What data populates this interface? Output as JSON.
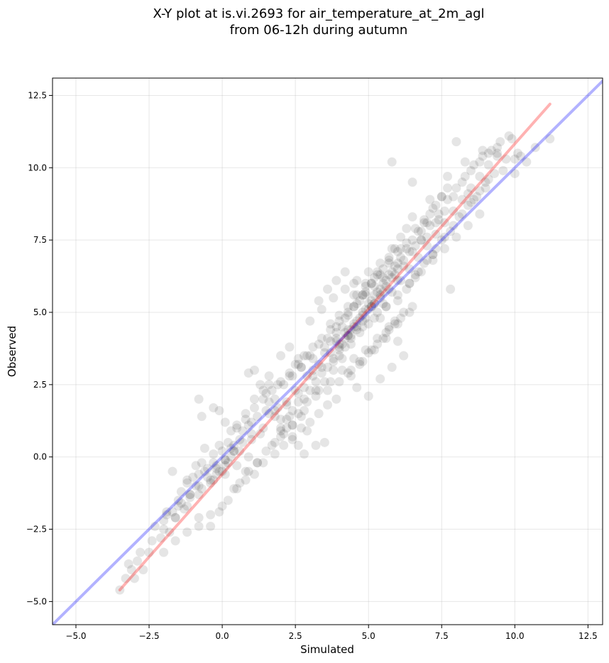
{
  "chart_data": {
    "type": "scatter",
    "title_lines": [
      "X-Y plot at is.vi.2693 for air_temperature_at_2m_agl",
      "from 06-12h during autumn"
    ],
    "xlabel": "Simulated",
    "ylabel": "Observed",
    "xlim": [
      -5.8,
      13.0
    ],
    "ylim": [
      -5.8,
      13.1
    ],
    "x_ticks": [
      -5.0,
      -2.5,
      0.0,
      2.5,
      5.0,
      7.5,
      10.0,
      12.5
    ],
    "x_tick_labels": [
      "−5.0",
      "−2.5",
      "0.0",
      "2.5",
      "5.0",
      "7.5",
      "10.0",
      "12.5"
    ],
    "y_ticks": [
      -5.0,
      -2.5,
      0.0,
      2.5,
      5.0,
      7.5,
      10.0,
      12.5
    ],
    "y_tick_labels": [
      "−5.0",
      "−2.5",
      "0.0",
      "2.5",
      "5.0",
      "7.5",
      "10.0",
      "12.5"
    ],
    "grid": true,
    "series": [
      {
        "kind": "points",
        "color": "#000000",
        "alpha": 0.1,
        "x": [
          -3.5,
          -3.3,
          -3.1,
          -3.0,
          -2.9,
          -2.7,
          -2.5,
          -2.1,
          -2.0,
          -1.9,
          -1.8,
          -1.7,
          -1.6,
          -1.5,
          -1.4,
          -1.3,
          -1.2,
          -1.1,
          -1.0,
          -0.9,
          -0.8,
          -0.7,
          -0.6,
          -0.5,
          -0.4,
          -0.3,
          -0.2,
          -0.1,
          0.0,
          0.1,
          0.2,
          0.3,
          0.4,
          -1.7,
          -1.2,
          -0.9,
          -0.6,
          -0.3,
          -0.1,
          -0.4,
          -0.8,
          -0.1,
          0.2,
          0.5,
          0.8,
          1.1,
          1.4,
          1.7,
          2.0,
          2.3,
          2.6,
          2.9,
          3.2,
          3.5,
          0.3,
          0.7,
          1.0,
          1.3,
          1.6,
          1.9,
          2.2,
          2.5,
          2.8,
          3.1,
          3.4,
          3.7,
          4.0,
          4.3,
          4.6,
          4.9,
          5.2,
          5.5,
          0.1,
          0.4,
          0.6,
          0.9,
          1.2,
          1.5,
          1.8,
          2.1,
          2.4,
          2.7,
          3.0,
          3.3,
          3.6,
          3.9,
          4.2,
          4.5,
          4.8,
          5.1,
          5.4,
          5.7,
          6.0,
          6.3,
          6.6,
          6.9,
          7.2,
          7.5,
          2.0,
          2.2,
          2.4,
          2.6,
          2.8,
          3.0,
          3.2,
          3.4,
          3.6,
          3.8,
          4.0,
          4.2,
          4.4,
          4.6,
          4.8,
          5.0,
          5.2,
          5.4,
          5.6,
          5.8,
          6.0,
          6.2,
          6.4,
          6.6,
          6.8,
          7.0,
          3.1,
          3.3,
          3.5,
          3.7,
          3.9,
          4.1,
          4.3,
          4.5,
          4.7,
          4.9,
          5.1,
          5.3,
          5.5,
          5.7,
          5.9,
          6.1,
          6.3,
          6.5,
          3.8,
          4.0,
          4.2,
          4.4,
          4.6,
          4.8,
          5.0,
          5.2,
          5.4,
          5.6,
          5.8,
          6.0,
          4.1,
          4.3,
          4.5,
          4.7,
          4.9,
          5.1,
          5.3,
          5.5,
          5.7,
          5.9,
          6.1,
          6.3,
          6.5,
          6.7,
          6.9,
          7.1,
          7.3,
          7.5,
          7.7,
          5.5,
          5.8,
          6.1,
          6.4,
          6.7,
          7.0,
          7.3,
          7.6,
          7.9,
          8.2,
          8.5,
          8.8,
          9.1,
          9.4,
          6.0,
          6.3,
          6.6,
          6.9,
          7.2,
          7.5,
          7.8,
          8.1,
          8.4,
          8.7,
          9.0,
          9.3,
          6.2,
          6.5,
          6.8,
          7.1,
          7.4,
          7.7,
          8.0,
          8.3,
          8.6,
          8.9,
          9.2,
          9.5,
          9.8,
          10.1,
          10.4,
          10.7,
          11.2,
          7.0,
          7.3,
          7.6,
          7.9,
          8.2,
          8.5,
          8.8,
          9.1,
          9.4,
          9.7,
          10.0,
          5.8,
          6.5,
          7.1,
          7.7,
          8.3,
          8.9,
          9.4,
          9.9,
          8.4,
          8.0,
          7.2,
          6.6,
          7.8,
          5.9,
          6.8,
          7.4,
          -0.8,
          -0.7,
          -0.3,
          -0.1,
          0.1,
          0.3,
          0.5,
          0.8,
          1.1,
          1.3,
          1.6,
          0.9,
          1.1,
          1.6,
          2.0,
          2.3,
          2.6,
          2.9,
          3.2,
          3.5,
          3.8,
          4.1,
          4.4,
          4.7,
          5.0,
          5.3,
          3.3,
          3.6,
          3.9,
          4.2,
          4.5,
          4.8,
          5.1,
          5.4,
          5.7,
          6.0,
          2.0,
          2.4,
          2.8,
          3.2,
          3.6,
          4.0,
          4.4,
          4.8,
          5.2,
          5.6,
          6.0,
          6.4,
          4.3,
          4.7,
          5.1,
          5.5,
          5.9,
          4.6,
          5.0,
          5.4,
          5.8,
          6.2,
          3.0,
          3.4,
          3.8,
          4.2,
          4.6,
          5.0,
          5.4,
          5.8,
          1.8,
          2.1,
          2.4,
          2.7,
          3.0,
          3.3,
          3.6,
          3.9,
          1.4,
          1.6,
          1.8,
          2.0,
          2.2,
          2.4,
          2.6,
          2.8,
          0.6,
          0.9,
          1.2,
          1.5,
          1.8,
          2.1,
          2.4,
          2.7,
          -2.0,
          -1.6,
          -1.2,
          -0.8,
          -0.4,
          0.0,
          0.4,
          0.8,
          1.2,
          -2.3,
          -1.9,
          -1.5,
          -1.1,
          -0.7,
          -0.3,
          0.1,
          0.5,
          0.9,
          3.7,
          4.0,
          4.3,
          4.6,
          4.9,
          5.2,
          4.4,
          4.7,
          5.0,
          5.3,
          5.6,
          5.9,
          6.2,
          3.9,
          4.2,
          4.5,
          4.8,
          5.1,
          5.4,
          5.7,
          6.0,
          4.0,
          4.4,
          4.8,
          5.2,
          5.6,
          4.5,
          4.9,
          5.3,
          5.7,
          6.1,
          8.6,
          9.0,
          9.6,
          10.0,
          10.2,
          6.4,
          6.7,
          7.0,
          7.3,
          7.6,
          7.9,
          8.2,
          8.5,
          8.8,
          9.1,
          5.6,
          6.0,
          6.4,
          6.8,
          7.2,
          7.6,
          8.0,
          8.4,
          8.8,
          2.5,
          2.8,
          3.1,
          3.4,
          3.7,
          4.0,
          4.3,
          4.6,
          4.9,
          5.2,
          5.5,
          2.9,
          3.3,
          3.7,
          4.1,
          4.5,
          4.9,
          5.3,
          5.7,
          6.1,
          6.5,
          1.5,
          1.9,
          2.3,
          2.7,
          3.1,
          3.5,
          3.9,
          4.3,
          0.5,
          0.8,
          1.1,
          1.4,
          1.7,
          2.0,
          2.3,
          2.6,
          2.9,
          -0.2,
          0.2,
          0.6,
          1.0,
          1.4,
          1.8,
          2.2,
          2.6,
          -1.4,
          -1.1,
          -0.8,
          -0.5,
          -0.2,
          0.1,
          0.4,
          0.7,
          1.0,
          -3.2,
          -2.8,
          -2.4,
          -2.0,
          -1.6,
          -1.2,
          -0.8,
          -0.4,
          0.0
        ],
        "y": [
          -4.6,
          -4.2,
          -3.9,
          -4.2,
          -3.6,
          -3.9,
          -3.3,
          -2.8,
          -2.2,
          -1.9,
          -2.6,
          -1.9,
          -2.1,
          -1.5,
          -1.2,
          -1.8,
          -0.9,
          -1.4,
          -0.7,
          -1.0,
          -0.6,
          -0.2,
          -0.5,
          -0.4,
          -0.8,
          0.1,
          -0.3,
          -0.5,
          0.2,
          -0.1,
          0.5,
          0.0,
          0.4,
          -0.5,
          -0.8,
          -0.3,
          0.3,
          -0.2,
          0.4,
          -2.4,
          -2.1,
          -1.9,
          -1.5,
          -1.1,
          -0.8,
          -0.6,
          -0.2,
          0.4,
          0.9,
          1.4,
          1.5,
          0.9,
          0.4,
          0.5,
          0.3,
          0.9,
          1.2,
          0.8,
          1.5,
          1.7,
          1.9,
          2.3,
          2.4,
          2.8,
          3.1,
          3.6,
          3.9,
          4.2,
          4.5,
          4.8,
          5.3,
          5.7,
          -0.3,
          0.2,
          0.6,
          1.1,
          1.4,
          1.6,
          2.0,
          2.5,
          2.8,
          3.1,
          3.5,
          3.9,
          4.1,
          4.5,
          4.8,
          5.2,
          5.6,
          6.0,
          6.3,
          6.7,
          7.1,
          7.4,
          7.9,
          8.2,
          8.6,
          9.0,
          1.0,
          1.3,
          1.6,
          1.9,
          2.0,
          2.3,
          2.6,
          2.9,
          3.1,
          3.3,
          3.5,
          3.8,
          4.2,
          4.4,
          4.7,
          5.1,
          5.3,
          5.6,
          5.9,
          6.2,
          6.5,
          6.8,
          7.1,
          7.3,
          7.8,
          8.1,
          3.0,
          3.2,
          3.6,
          4.0,
          4.3,
          4.5,
          4.9,
          5.2,
          5.4,
          5.7,
          6.0,
          6.3,
          6.5,
          6.9,
          7.2,
          7.6,
          7.9,
          8.3,
          3.4,
          3.7,
          4.1,
          4.4,
          4.7,
          5.0,
          5.3,
          5.6,
          5.8,
          6.1,
          6.4,
          6.7,
          3.9,
          4.2,
          4.5,
          4.8,
          5.1,
          5.4,
          5.7,
          6.0,
          6.3,
          6.6,
          6.9,
          7.2,
          7.5,
          7.8,
          8.1,
          8.4,
          8.7,
          9.0,
          9.3,
          5.3,
          5.7,
          6.1,
          6.5,
          6.9,
          7.3,
          7.7,
          8.1,
          8.5,
          8.9,
          9.3,
          9.7,
          10.1,
          10.4,
          5.4,
          5.8,
          6.2,
          6.7,
          7.0,
          7.5,
          7.8,
          8.3,
          8.7,
          9.0,
          9.5,
          9.8,
          6.6,
          7.1,
          7.5,
          8.0,
          8.4,
          8.9,
          9.3,
          9.7,
          10.1,
          10.4,
          10.6,
          10.9,
          11.1,
          10.5,
          10.2,
          10.7,
          11.0,
          7.6,
          8.1,
          8.5,
          9.0,
          9.5,
          9.9,
          10.2,
          10.5,
          10.7,
          10.3,
          9.8,
          10.2,
          9.5,
          8.9,
          9.7,
          10.2,
          10.6,
          10.5,
          11.0,
          9.1,
          10.9,
          7.0,
          6.3,
          5.8,
          6.3,
          7.5,
          8.2,
          2.0,
          1.4,
          1.7,
          1.6,
          1.2,
          0.9,
          1.1,
          1.5,
          2.0,
          2.5,
          2.8,
          2.9,
          3.0,
          2.5,
          3.5,
          3.8,
          3.4,
          2.8,
          2.3,
          2.6,
          3.0,
          3.4,
          3.9,
          4.3,
          4.6,
          5.0,
          5.4,
          5.8,
          6.1,
          6.4,
          6.0,
          5.6,
          5.2,
          4.8,
          4.4,
          4.0,
          0.7,
          1.1,
          1.6,
          2.1,
          2.3,
          2.6,
          3.0,
          3.3,
          3.7,
          4.1,
          4.6,
          5.0,
          2.9,
          3.3,
          3.7,
          4.1,
          4.6,
          2.4,
          2.1,
          2.7,
          3.1,
          3.5,
          4.7,
          5.1,
          5.5,
          5.8,
          6.1,
          6.4,
          6.7,
          7.2,
          0.1,
          0.4,
          0.7,
          1.0,
          1.2,
          1.5,
          1.8,
          2.0,
          2.3,
          1.9,
          1.6,
          1.3,
          1.0,
          0.6,
          0.4,
          0.1,
          -0.9,
          -0.5,
          -0.2,
          0.2,
          0.5,
          0.8,
          1.1,
          1.4,
          -3.3,
          -2.9,
          -2.6,
          -2.4,
          -2.0,
          -1.7,
          -1.1,
          -0.5,
          -0.2,
          -2.4,
          -2.0,
          -1.7,
          -1.3,
          -1.1,
          -0.8,
          -0.6,
          -0.3,
          0.0,
          4.6,
          4.9,
          5.2,
          5.6,
          5.9,
          6.2,
          2.8,
          3.2,
          3.6,
          3.9,
          4.3,
          4.7,
          5.0,
          4.0,
          4.3,
          4.6,
          4.9,
          5.2,
          5.5,
          5.8,
          6.1,
          3.8,
          4.1,
          4.5,
          4.8,
          5.2,
          5.6,
          6.0,
          6.4,
          6.8,
          7.2,
          8.9,
          9.3,
          9.9,
          10.3,
          10.4,
          6.0,
          6.4,
          6.8,
          7.2,
          7.6,
          8.0,
          8.4,
          8.8,
          9.2,
          9.6,
          5.2,
          5.6,
          6.0,
          6.4,
          6.8,
          7.2,
          7.6,
          8.0,
          8.4,
          3.2,
          3.5,
          3.8,
          4.1,
          4.4,
          4.7,
          5.0,
          5.3,
          5.6,
          5.9,
          6.2,
          1.9,
          2.3,
          2.6,
          3.0,
          3.4,
          3.7,
          4.1,
          4.5,
          4.8,
          5.2,
          2.2,
          2.5,
          2.8,
          3.1,
          3.4,
          3.8,
          4.1,
          4.4,
          1.0,
          1.3,
          1.7,
          2.0,
          2.3,
          2.6,
          2.9,
          3.2,
          3.5,
          -0.6,
          -0.2,
          0.2,
          0.6,
          1.0,
          1.4,
          1.8,
          2.2,
          -1.6,
          -1.3,
          -1.0,
          -0.7,
          -0.4,
          -0.1,
          0.2,
          0.5,
          0.8,
          -3.7,
          -3.3,
          -2.9,
          -2.5,
          -2.1,
          -1.7,
          -1.3,
          -0.9,
          -0.5
        ]
      },
      {
        "kind": "line",
        "color": "#ff0000",
        "alpha": 0.3,
        "x": [
          -3.5,
          11.2
        ],
        "y": [
          -4.6,
          12.2
        ]
      },
      {
        "kind": "line",
        "color": "#0000ff",
        "alpha": 0.3,
        "x": [
          -5.8,
          13.0
        ],
        "y": [
          -5.8,
          13.0
        ]
      }
    ]
  }
}
